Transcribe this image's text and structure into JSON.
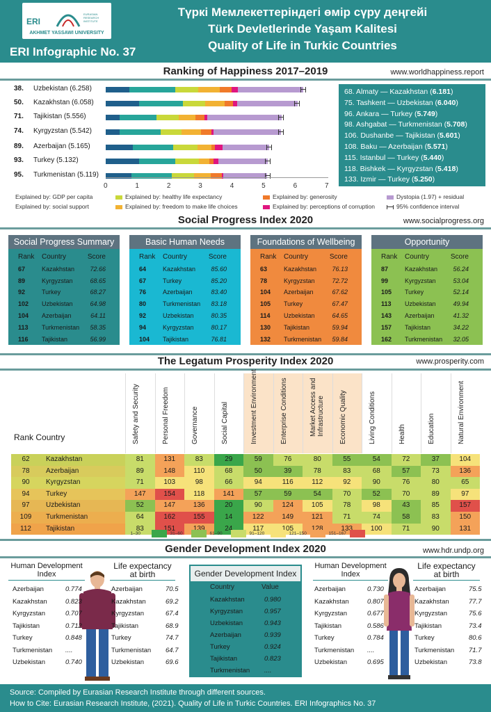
{
  "header": {
    "logo_text": "ERI",
    "logo_institute": "EURASIAN RESEARCH INSTITUTE",
    "logo_university": "AKHMET YASSAWI UNIVERSITY",
    "infographic_no": "ERI Infographic No. 37",
    "title_kz": "Түркі Мемлекеттеріндегі өмір сүру деңгейі",
    "title_tr": "Türk Devletlerinde Yaşam Kalitesi",
    "title_en": "Quality of Life in Turkic Countries"
  },
  "happiness": {
    "title": "Ranking of Happiness 2017–2019",
    "source": "www.worldhappiness.report",
    "rows": [
      {
        "rank": "38.",
        "label": "Uzbekistan (6.258)"
      },
      {
        "rank": "50.",
        "label": "Kazakhstan (6.058)"
      },
      {
        "rank": "71.",
        "label": "Tajikistan (5.556)"
      },
      {
        "rank": "74.",
        "label": "Kyrgyzstan (5.542)"
      },
      {
        "rank": "89.",
        "label": "Azerbaijan (5.165)"
      },
      {
        "rank": "93.",
        "label": "Turkey (5.132)"
      },
      {
        "rank": "95.",
        "label": "Turkmenistan (5.119)"
      }
    ],
    "ticks": [
      "0",
      "1",
      "2",
      "3",
      "4",
      "5",
      "6",
      "7"
    ],
    "cities": [
      {
        "text": "68. Almaty — Kazakhstan (",
        "score": "6.181",
        "end": ")"
      },
      {
        "text": "75. Tashkent — Uzbekistan (",
        "score": "6.040",
        "end": ")"
      },
      {
        "text": "96. Ankara — Turkey (",
        "score": "5.749",
        "end": ")"
      },
      {
        "text": "98. Ashgabat — Turkmenistan (",
        "score": "5.708",
        "end": ")"
      },
      {
        "text": "106. Dushanbe — Tajikistan (",
        "score": "5.601",
        "end": ")"
      },
      {
        "text": "108. Baku — Azerbaijan (",
        "score": "5.571",
        "end": ")"
      },
      {
        "text": "115. Istanbul — Turkey (",
        "score": "5.440",
        "end": ")"
      },
      {
        "text": "118. Bishkek — Kyrgyzstan (",
        "score": "5.418",
        "end": ")"
      },
      {
        "text": "133. Izmir — Turkey (",
        "score": "5.250",
        "end": ")"
      }
    ],
    "legend": {
      "gdp": "Explained by: GDP per capita",
      "social": "Explained by: social support",
      "health": "Explained by: healthy life expectancy",
      "freedom": "Explained by: freedom to make life choices",
      "generosity": "Explained by: generosity",
      "corruption": "Explained by: perceptions of corruption",
      "dystopia": "Dystopia (1.97) + residual",
      "ci": "95% confidence interval"
    },
    "colors": {
      "gdp": "#1f5f8b",
      "social": "#27a59a",
      "health": "#c9d83a",
      "freedom": "#f2b233",
      "generosity": "#f07a2a",
      "corruption": "#e0157f",
      "dystopia": "#b79ad0"
    }
  },
  "spi": {
    "title": "Social Progress Index 2020",
    "source": "www.socialprogress.org",
    "col_rank": "Rank",
    "col_country": "Country",
    "col_score": "Score",
    "panels": [
      {
        "title": "Social Progress Summary",
        "rows": [
          [
            "67",
            "Kazakhstan",
            "72.66"
          ],
          [
            "89",
            "Kyrgyzstan",
            "68.65"
          ],
          [
            "92",
            "Turkey",
            "68.27"
          ],
          [
            "102",
            "Uzbekistan",
            "64.98"
          ],
          [
            "104",
            "Azerbaijan",
            "64.11"
          ],
          [
            "113",
            "Turkmenistan",
            "58.35"
          ],
          [
            "116",
            "Tajikistan",
            "56.99"
          ]
        ]
      },
      {
        "title": "Basic Human Needs",
        "rows": [
          [
            "64",
            "Kazakhstan",
            "85.60"
          ],
          [
            "67",
            "Turkey",
            "85.20"
          ],
          [
            "76",
            "Azerbaijan",
            "83.40"
          ],
          [
            "80",
            "Turkmenistan",
            "83.18"
          ],
          [
            "92",
            "Uzbekistan",
            "80.35"
          ],
          [
            "94",
            "Kyrgyzstan",
            "80.17"
          ],
          [
            "104",
            "Tajikistan",
            "76.81"
          ]
        ]
      },
      {
        "title": "Foundations of Wellbeing",
        "rows": [
          [
            "63",
            "Kazakhstan",
            "76.13"
          ],
          [
            "78",
            "Kyrgyzstan",
            "72.72"
          ],
          [
            "104",
            "Azerbaijan",
            "67.62"
          ],
          [
            "105",
            "Turkey",
            "67.47"
          ],
          [
            "114",
            "Uzbekistan",
            "64.65"
          ],
          [
            "130",
            "Tajikistan",
            "59.94"
          ],
          [
            "132",
            "Turkmenistan",
            "59.84"
          ]
        ]
      },
      {
        "title": "Opportunity",
        "rows": [
          [
            "87",
            "Kazakhstan",
            "56.24"
          ],
          [
            "99",
            "Kyrgyzstan",
            "53.04"
          ],
          [
            "105",
            "Turkey",
            "52.14"
          ],
          [
            "113",
            "Uzbekistan",
            "49.94"
          ],
          [
            "143",
            "Azerbaijan",
            "41.32"
          ],
          [
            "157",
            "Tajikistan",
            "34.22"
          ],
          [
            "162",
            "Turkmenistan",
            "32.05"
          ]
        ]
      }
    ]
  },
  "legatum": {
    "title": "The Legatum Prosperity Index 2020",
    "source": "www.prosperity.com",
    "rank_country": "Rank Country",
    "columns": [
      "Safety and Security",
      "Personal Freedom",
      "Governance",
      "Social Capital",
      "Investment Environment",
      "Enterprise Conditions",
      "Market Access and Infrastructure",
      "Economic Quality",
      "Living Conditions",
      "Health",
      "Education",
      "Natural Environment"
    ],
    "rows": [
      {
        "rank": "62",
        "country": "Kazakhstan",
        "values": [
          "81",
          "131",
          "83",
          "29",
          "59",
          "76",
          "80",
          "55",
          "54",
          "72",
          "37",
          "104"
        ]
      },
      {
        "rank": "78",
        "country": "Azerbaijan",
        "values": [
          "89",
          "148",
          "110",
          "68",
          "50",
          "39",
          "78",
          "83",
          "68",
          "57",
          "73",
          "136"
        ]
      },
      {
        "rank": "90",
        "country": "Kyrgyzstan",
        "values": [
          "71",
          "103",
          "98",
          "66",
          "94",
          "116",
          "112",
          "92",
          "90",
          "76",
          "80",
          "65"
        ]
      },
      {
        "rank": "94",
        "country": "Turkey",
        "values": [
          "147",
          "154",
          "118",
          "141",
          "57",
          "59",
          "54",
          "70",
          "52",
          "70",
          "89",
          "97"
        ]
      },
      {
        "rank": "97",
        "country": "Uzbekistan",
        "values": [
          "52",
          "147",
          "136",
          "20",
          "90",
          "124",
          "105",
          "78",
          "98",
          "43",
          "85",
          "157"
        ]
      },
      {
        "rank": "109",
        "country": "Turkmenistan",
        "values": [
          "64",
          "162",
          "155",
          "14",
          "122",
          "149",
          "121",
          "71",
          "74",
          "58",
          "83",
          "150"
        ]
      },
      {
        "rank": "112",
        "country": "Tajikistan",
        "values": [
          "83",
          "151",
          "139",
          "24",
          "117",
          "105",
          "128",
          "133",
          "100",
          "71",
          "90",
          "131"
        ]
      }
    ],
    "scale": [
      "1–30",
      "31–60",
      "61–90",
      "91–120",
      "121–150",
      "151–167"
    ],
    "scale_colors": [
      "#3aa64a",
      "#8cc152",
      "#c8dc6a",
      "#f6e27a",
      "#f4a259",
      "#e0504a"
    ]
  },
  "gender": {
    "title": "Gender Development Index 2020",
    "source": "www.hdr.undp.org",
    "hdi_title": "Human Development Index",
    "life_title": "Life expectancy at birth",
    "gdi_title": "Gender Development Index",
    "col_country": "Country",
    "col_value": "Value",
    "male_hdi": [
      [
        "Azerbaijan",
        "0.774"
      ],
      [
        "Kazakhstan",
        "0.823"
      ],
      [
        "Kyrgyzstan",
        "0.707"
      ],
      [
        "Tajikistan",
        "0.712"
      ],
      [
        "Turkey",
        "0.848"
      ],
      [
        "Turkmenistan",
        "...."
      ],
      [
        "Uzbekistan",
        "0.740"
      ]
    ],
    "male_life": [
      [
        "Azerbaijan",
        "70.5"
      ],
      [
        "Kazakhstan",
        "69.2"
      ],
      [
        "Kyrgyzstan",
        "67.4"
      ],
      [
        "Tajikistan",
        "68.9"
      ],
      [
        "Turkey",
        "74.7"
      ],
      [
        "Turkmenistan",
        "64.7"
      ],
      [
        "Uzbekistan",
        "69.6"
      ]
    ],
    "gdi": [
      [
        "Kazakhstan",
        "0.980"
      ],
      [
        "Kyrgyzstan",
        "0.957"
      ],
      [
        "Uzbekistan",
        "0.943"
      ],
      [
        "Azerbaijan",
        "0.939"
      ],
      [
        "Turkey",
        "0.924"
      ],
      [
        "Tajikistan",
        "0.823"
      ],
      [
        "Turkmenistan",
        "...."
      ]
    ],
    "female_hdi": [
      [
        "Azerbaijan",
        "0.730"
      ],
      [
        "Kazakhstan",
        "0.807"
      ],
      [
        "Kyrgyzstan",
        "0.677"
      ],
      [
        "Tajikistan",
        "0.586"
      ],
      [
        "Turkey",
        "0.784"
      ],
      [
        "Turkmenistan",
        "...."
      ],
      [
        "Uzbekistan",
        "0.695"
      ]
    ],
    "female_life": [
      [
        "Azerbaijan",
        "75.5"
      ],
      [
        "Kazakhstan",
        "77.7"
      ],
      [
        "Kyrgyzstan",
        "75.6"
      ],
      [
        "Tajikistan",
        "73.4"
      ],
      [
        "Turkey",
        "80.6"
      ],
      [
        "Turkmenistan",
        "71.7"
      ],
      [
        "Uzbekistan",
        "73.8"
      ]
    ]
  },
  "footer": {
    "source": "Source: Compiled by Eurasian Research Institute through different sources.",
    "cite": "How to Cite: Eurasian Research Institute, (2021). Quality of Life in Turkic Countries. ERI Infographics No. 37"
  },
  "chart_data": {
    "type": "bar",
    "title": "Ranking of Happiness 2017–2019",
    "categories": [
      "Uzbekistan",
      "Kazakhstan",
      "Tajikistan",
      "Kyrgyzstan",
      "Azerbaijan",
      "Turkey",
      "Turkmenistan"
    ],
    "xlim": [
      0,
      7
    ],
    "stacked": true,
    "orientation": "horizontal",
    "series": [
      {
        "name": "Explained by: GDP per capita",
        "values": [
          0.75,
          1.05,
          0.45,
          0.45,
          0.85,
          1.05,
          0.82
        ]
      },
      {
        "name": "Explained by: social support",
        "values": [
          1.45,
          1.4,
          1.15,
          1.28,
          1.28,
          1.15,
          1.28
        ]
      },
      {
        "name": "Explained by: healthy life expectancy",
        "values": [
          0.72,
          0.7,
          0.72,
          0.68,
          0.78,
          0.75,
          0.7
        ]
      },
      {
        "name": "Explained by: freedom to make life choices",
        "values": [
          0.7,
          0.62,
          0.52,
          0.6,
          0.43,
          0.34,
          0.52
        ]
      },
      {
        "name": "Explained by: generosity",
        "values": [
          0.36,
          0.25,
          0.28,
          0.33,
          0.12,
          0.12,
          0.36
        ]
      },
      {
        "name": "Explained by: perceptions of corruption",
        "values": [
          0.2,
          0.15,
          0.1,
          0.07,
          0.24,
          0.15,
          0.04
        ]
      },
      {
        "name": "Dystopia (1.97) + residual",
        "values": [
          2.08,
          1.9,
          2.34,
          2.13,
          1.47,
          1.58,
          1.39
        ]
      }
    ],
    "totals": [
      6.258,
      6.058,
      5.556,
      5.542,
      5.165,
      5.132,
      5.119
    ]
  }
}
